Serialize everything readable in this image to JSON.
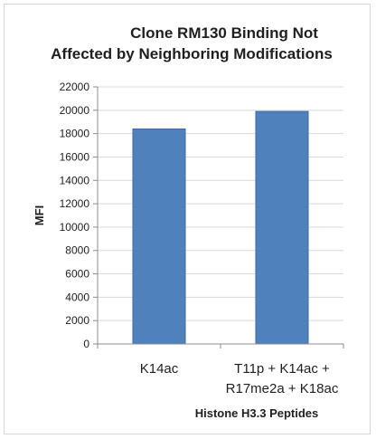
{
  "chart_data": {
    "type": "bar",
    "title_lines": [
      "Clone RM130 Binding Not",
      "Affected by Neighboring Modifications"
    ],
    "xlabel": "Histone H3.3 Peptides",
    "ylabel": "MFI",
    "categories": [
      [
        "K14ac"
      ],
      [
        "T11p + K14ac +",
        "R17me2a + K18ac"
      ]
    ],
    "values": [
      18400,
      19900
    ],
    "ylim": [
      0,
      22000
    ],
    "yticks": [
      0,
      2000,
      4000,
      6000,
      8000,
      10000,
      12000,
      14000,
      16000,
      18000,
      20000,
      22000
    ],
    "grid": true,
    "legend": "none",
    "bar_color": "#4f81bd",
    "bar_edge_color": "#3a6aa6"
  }
}
